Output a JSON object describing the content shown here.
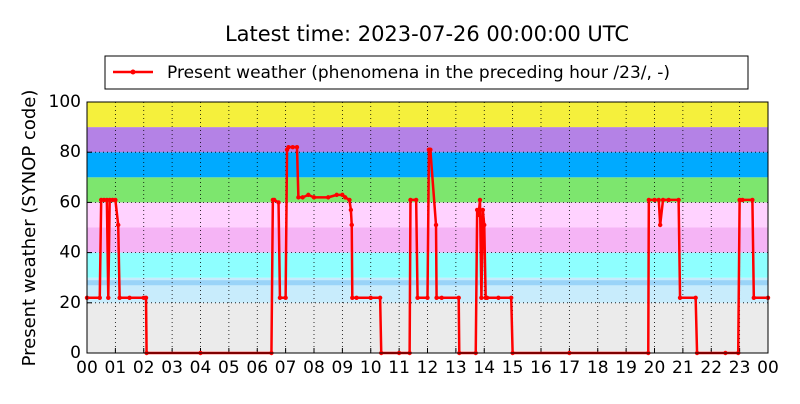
{
  "chart_data": {
    "type": "line",
    "title": "Latest time: 2023-07-26 00:00:00 UTC",
    "y_label": "Present weather (SYNOP code)",
    "xlim": [
      0,
      24
    ],
    "ylim": [
      0,
      100
    ],
    "xticks": [
      {
        "value": 0,
        "label": "00"
      },
      {
        "value": 1,
        "label": "01"
      },
      {
        "value": 2,
        "label": "02"
      },
      {
        "value": 3,
        "label": "03"
      },
      {
        "value": 4,
        "label": "04"
      },
      {
        "value": 5,
        "label": "05"
      },
      {
        "value": 6,
        "label": "06"
      },
      {
        "value": 7,
        "label": "07"
      },
      {
        "value": 8,
        "label": "08"
      },
      {
        "value": 9,
        "label": "09"
      },
      {
        "value": 10,
        "label": "10"
      },
      {
        "value": 11,
        "label": "11"
      },
      {
        "value": 12,
        "label": "12"
      },
      {
        "value": 13,
        "label": "13"
      },
      {
        "value": 14,
        "label": "14"
      },
      {
        "value": 15,
        "label": "15"
      },
      {
        "value": 16,
        "label": "16"
      },
      {
        "value": 17,
        "label": "17"
      },
      {
        "value": 18,
        "label": "18"
      },
      {
        "value": 19,
        "label": "19"
      },
      {
        "value": 20,
        "label": "20"
      },
      {
        "value": 21,
        "label": "21"
      },
      {
        "value": 22,
        "label": "22"
      },
      {
        "value": 23,
        "label": "23"
      },
      {
        "value": 24,
        "label": "00"
      }
    ],
    "yticks": [
      0,
      20,
      40,
      60,
      80,
      100
    ],
    "grid": true,
    "legend": "top",
    "bands": [
      {
        "from": 0,
        "to": 20,
        "color": "#ebebeb"
      },
      {
        "from": 20,
        "to": 30,
        "color": "#c8ecfc"
      },
      {
        "from": 27,
        "to": 29,
        "color": "#9ad4f8"
      },
      {
        "from": 30,
        "to": 40,
        "color": "#8effff"
      },
      {
        "from": 40,
        "to": 50,
        "color": "#f5b4f5"
      },
      {
        "from": 50,
        "to": 60,
        "color": "#ffd2ff"
      },
      {
        "from": 60,
        "to": 70,
        "color": "#7de66e"
      },
      {
        "from": 70,
        "to": 80,
        "color": "#00aaff"
      },
      {
        "from": 80,
        "to": 90,
        "color": "#b482e6"
      },
      {
        "from": 90,
        "to": 100,
        "color": "#f5f03c"
      }
    ],
    "x": [
      0,
      0.45,
      0.5,
      0.6,
      0.7,
      0.75,
      0.8,
      0.9,
      1.0,
      1.1,
      1.15,
      1.5,
      2.0,
      2.08,
      2.1,
      4,
      6.5,
      6.55,
      6.6,
      6.75,
      6.8,
      7.0,
      7.05,
      7.1,
      7.25,
      7.4,
      7.45,
      7.6,
      7.8,
      8.0,
      8.5,
      8.8,
      9.0,
      9.1,
      9.25,
      9.3,
      9.33,
      9.35,
      9.5,
      10.0,
      10.33,
      10.37,
      11.0,
      11.37,
      11.4,
      11.6,
      11.65,
      12.0,
      12.05,
      12.1,
      12.3,
      12.32,
      12.5,
      13.1,
      13.12,
      13.7,
      13.75,
      13.8,
      13.85,
      13.9,
      13.95,
      14.0,
      14.05,
      14.1,
      14.5,
      14.95,
      15.0,
      17,
      19.78,
      19.8,
      20.0,
      20.15,
      20.2,
      20.3,
      20.5,
      20.85,
      20.9,
      21.45,
      21.5,
      22.5,
      22.95,
      23.0,
      23.1,
      23.45,
      23.5,
      24
    ],
    "series": [
      {
        "name": "Present weather (phenomena in the preceding hour /23/, -)",
        "color": "#ff0000",
        "values": [
          22,
          22,
          61,
          61,
          61,
          22,
          61,
          61,
          61,
          51,
          22,
          22,
          22,
          22,
          0,
          0,
          0,
          61,
          61,
          60,
          22,
          22,
          81,
          82,
          82,
          82,
          62,
          62,
          63,
          62,
          62,
          63,
          63,
          62,
          61,
          57,
          51,
          22,
          22,
          22,
          22,
          0,
          0,
          0,
          61,
          61,
          22,
          22,
          81,
          81,
          51,
          22,
          22,
          22,
          0,
          0,
          57,
          55,
          61,
          22,
          57,
          51,
          22,
          22,
          22,
          22,
          0,
          0,
          0,
          61,
          61,
          61,
          51,
          61,
          61,
          61,
          22,
          22,
          0,
          0,
          0,
          61,
          61,
          61,
          22,
          22
        ]
      }
    ]
  }
}
